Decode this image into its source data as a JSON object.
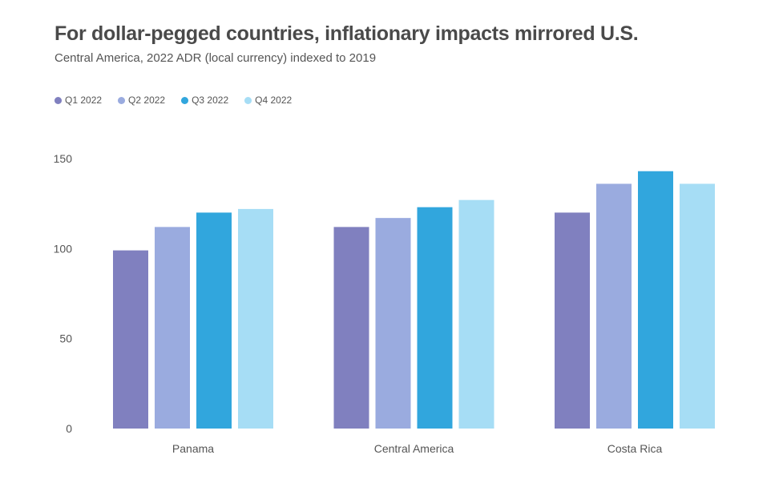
{
  "title": "For dollar-pegged countries, inflationary impacts mirrored U.S.",
  "subtitle": "Central America, 2022 ADR (local currency) indexed to 2019",
  "chart_data": {
    "type": "bar",
    "categories": [
      "Panama",
      "Central America",
      "Costa Rica"
    ],
    "series": [
      {
        "name": "Q1 2022",
        "color": "#8080bf",
        "values": [
          99,
          112,
          120
        ]
      },
      {
        "name": "Q2 2022",
        "color": "#9aabdf",
        "values": [
          112,
          117,
          136
        ]
      },
      {
        "name": "Q3 2022",
        "color": "#31a6dd",
        "values": [
          120,
          123,
          143
        ]
      },
      {
        "name": "Q4 2022",
        "color": "#a6ddf5",
        "values": [
          122,
          127,
          136
        ]
      }
    ],
    "yticks": [
      0,
      50,
      100,
      150
    ],
    "ylim": [
      0,
      150
    ],
    "xlabel": "",
    "ylabel": "",
    "grid": false,
    "legend_position": "top-left"
  }
}
